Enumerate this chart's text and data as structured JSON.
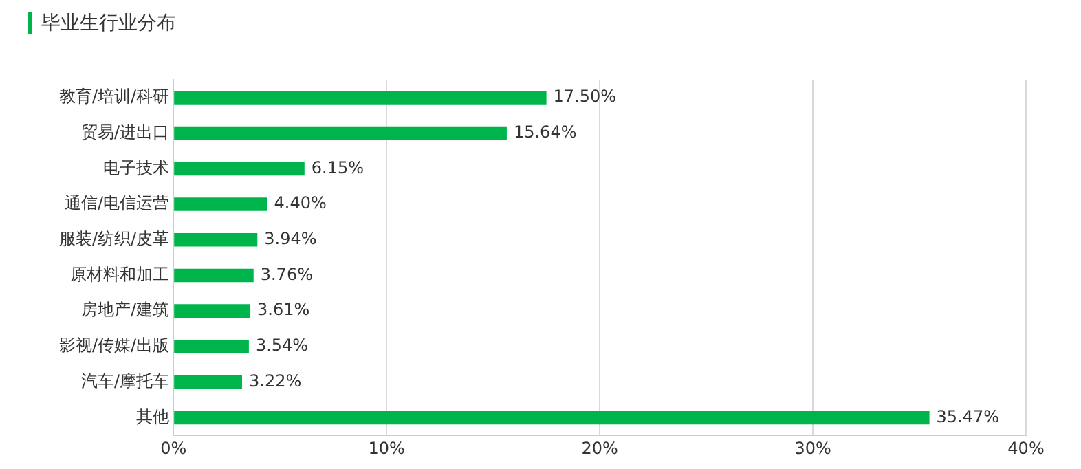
{
  "chart_data": {
    "type": "bar",
    "orientation": "horizontal",
    "title": "毕业生行业分布",
    "categories": [
      "教育/培训/科研",
      "贸易/进出口",
      "电子技术",
      "通信/电信运营",
      "服装/纺织/皮革",
      "原材料和加工",
      "房地产/建筑",
      "影视/传媒/出版",
      "汽车/摩托车",
      "其他"
    ],
    "values": [
      17.5,
      15.64,
      6.15,
      4.4,
      3.94,
      3.76,
      3.61,
      3.54,
      3.22,
      35.47
    ],
    "value_labels": [
      "17.50%",
      "15.64%",
      "6.15%",
      "4.40%",
      "3.94%",
      "3.76%",
      "3.61%",
      "3.54%",
      "3.22%",
      "35.47%"
    ],
    "color": "#00b44c",
    "xlim": [
      0,
      40
    ],
    "xticks": [
      {
        "value": 0,
        "label": "0%"
      },
      {
        "value": 10,
        "label": "10%"
      },
      {
        "value": 20,
        "label": "20%"
      },
      {
        "value": 30,
        "label": "30%"
      },
      {
        "value": 40,
        "label": "40%"
      }
    ],
    "grid": "x"
  }
}
